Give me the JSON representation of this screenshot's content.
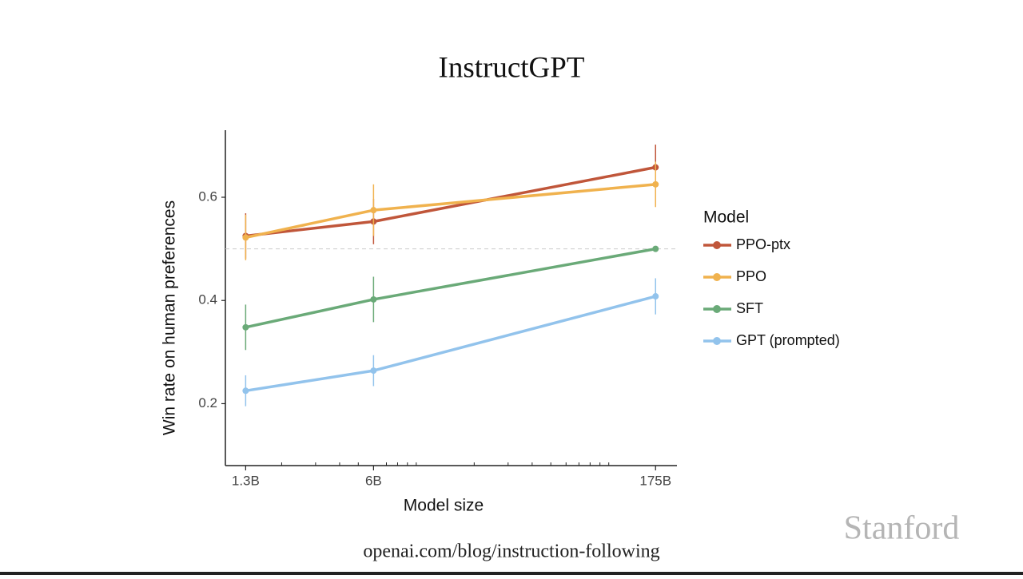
{
  "slide": {
    "title": "InstructGPT",
    "source": "openai.com/blog/instruction-following",
    "logo": "Stanford"
  },
  "chart_data": {
    "type": "line",
    "x_label": "Model size",
    "y_label": "Win rate on human preferences",
    "x": [
      1.3,
      6,
      175
    ],
    "xscale": "log",
    "xlim": [
      1.02,
      226
    ],
    "xticks": [
      {
        "value": 1.3,
        "label": "1.3B"
      },
      {
        "value": 6,
        "label": "6B"
      },
      {
        "value": 175,
        "label": "175B"
      }
    ],
    "xminorticks": [
      2,
      3,
      4,
      5,
      7,
      8,
      9,
      10,
      20,
      30,
      40,
      50,
      60,
      70,
      80,
      90,
      100
    ],
    "ylim": [
      0.08,
      0.73
    ],
    "yticks": [
      0.2,
      0.4,
      0.6
    ],
    "reference_line": 0.5,
    "legend_title": "Model",
    "legend_position": "right",
    "series": [
      {
        "name": "PPO-ptx",
        "color": "#c0563a",
        "values": [
          0.525,
          0.553,
          0.658
        ],
        "errors": [
          0.044,
          0.044,
          0.044
        ]
      },
      {
        "name": "PPO",
        "color": "#f0b24e",
        "values": [
          0.522,
          0.575,
          0.625
        ],
        "errors": [
          0.044,
          0.05,
          0.044
        ]
      },
      {
        "name": "SFT",
        "color": "#6aaa78",
        "values": [
          0.348,
          0.402,
          0.5
        ],
        "errors": [
          0.044,
          0.044,
          0
        ]
      },
      {
        "name": "GPT (prompted)",
        "color": "#92c3ec",
        "values": [
          0.225,
          0.264,
          0.408
        ],
        "errors": [
          0.03,
          0.03,
          0.035
        ]
      }
    ]
  }
}
